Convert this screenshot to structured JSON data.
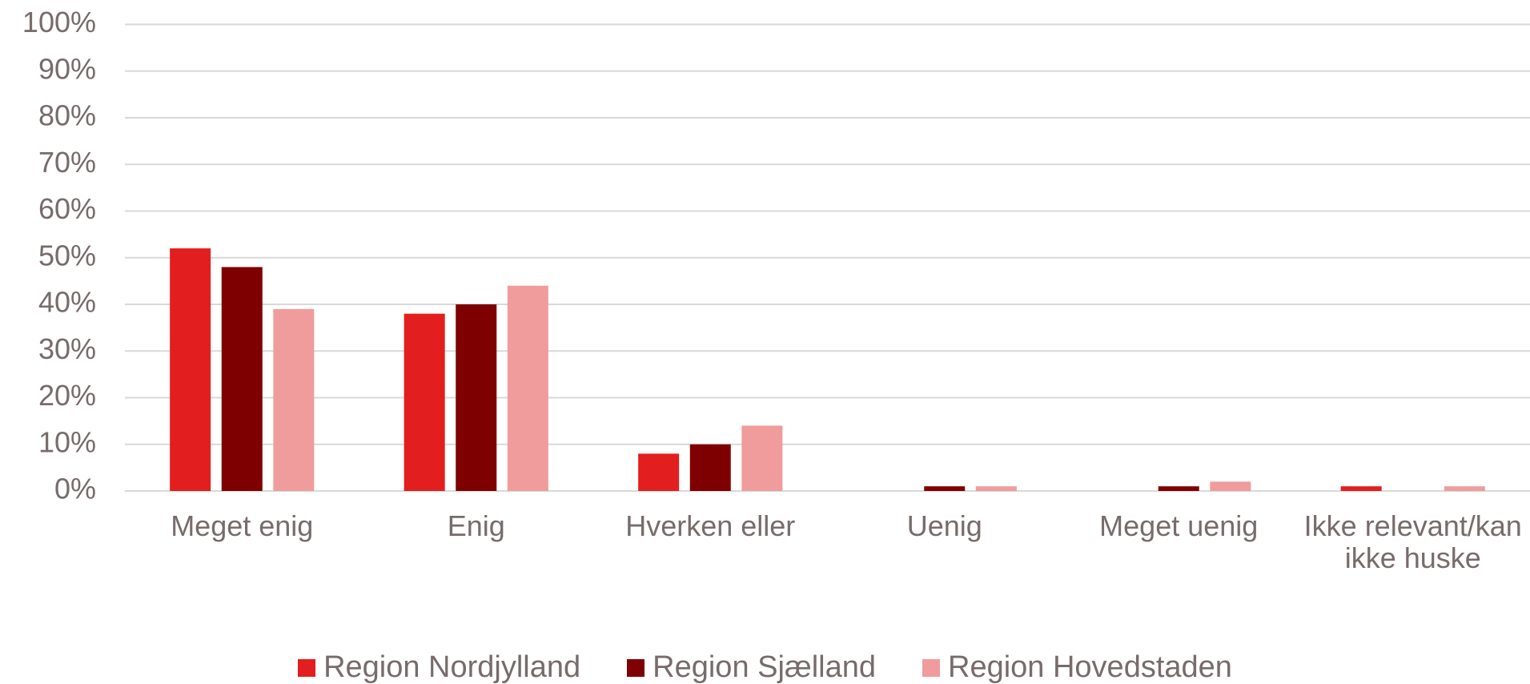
{
  "chart_data": {
    "type": "bar",
    "categories": [
      "Meget enig",
      "Enig",
      "Hverken eller",
      "Uenig",
      "Meget uenig",
      "Ikke relevant/kan ikke huske"
    ],
    "series": [
      {
        "name": "Region Nordjylland",
        "color": "#e31e1e",
        "values": [
          52,
          38,
          8,
          0,
          0,
          1
        ]
      },
      {
        "name": "Region Sjælland",
        "color": "#7f0000",
        "values": [
          48,
          40,
          10,
          1,
          1,
          0
        ]
      },
      {
        "name": "Region Hovedstaden",
        "color": "#f09c9c",
        "values": [
          39,
          44,
          14,
          1,
          2,
          1
        ]
      }
    ],
    "ylim": [
      0,
      100
    ],
    "yticks": [
      {
        "value": 0,
        "label": "0%"
      },
      {
        "value": 10,
        "label": "10%"
      },
      {
        "value": 20,
        "label": "20%"
      },
      {
        "value": 30,
        "label": "30%"
      },
      {
        "value": 40,
        "label": "40%"
      },
      {
        "value": 50,
        "label": "50%"
      },
      {
        "value": 60,
        "label": "60%"
      },
      {
        "value": 70,
        "label": "70%"
      },
      {
        "value": 80,
        "label": "80%"
      },
      {
        "value": 90,
        "label": "90%"
      },
      {
        "value": 100,
        "label": "100%"
      }
    ],
    "grid": true,
    "legend": "bottom"
  }
}
